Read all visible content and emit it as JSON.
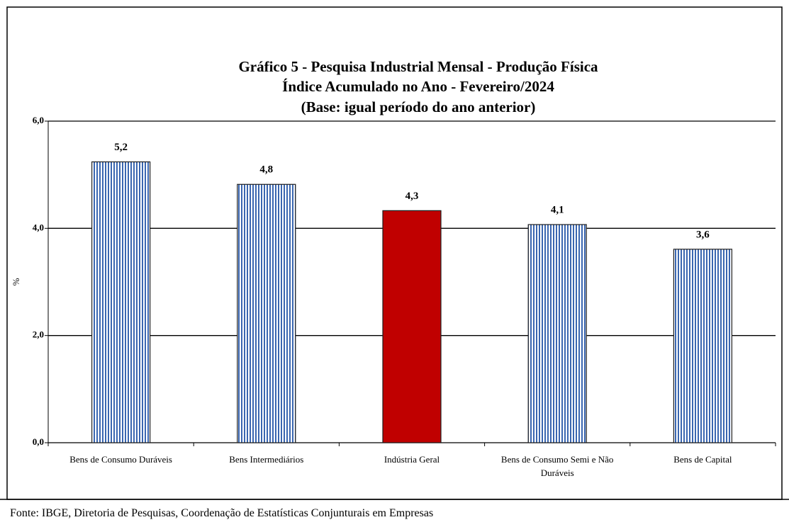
{
  "chart_data": {
    "type": "bar",
    "title": [
      "Gráfico 5 - Pesquisa Industrial Mensal - Produção Física",
      "Índice Acumulado no Ano - Fevereiro/2024",
      "(Base: igual período do ano anterior)"
    ],
    "ylabel": "%",
    "categories": [
      "Bens de Consumo Duráveis",
      "Bens Intermediários",
      "Indústria Geral",
      "Bens de Consumo Semi e Não Duráveis",
      "Bens de Capital"
    ],
    "values": [
      5.24,
      4.82,
      4.33,
      4.07,
      3.61
    ],
    "value_labels": [
      "5,2",
      "4,8",
      "4,3",
      "4,1",
      "3,6"
    ],
    "colors": [
      "#3a66b0",
      "#3a66b0",
      "#c00000",
      "#3a66b0",
      "#3a66b0"
    ],
    "styles": [
      "striped",
      "striped",
      "solid",
      "striped",
      "striped"
    ],
    "ylim": [
      0,
      6
    ],
    "yticks": [
      {
        "value": 0,
        "label": "0,0"
      },
      {
        "value": 2,
        "label": "2,0"
      },
      {
        "value": 4,
        "label": "4,0"
      },
      {
        "value": 6,
        "label": "6,0"
      }
    ],
    "grid": true,
    "source": "Fonte: IBGE, Diretoria de Pesquisas, Coordenação de Estatísticas Conjunturais em Empresas"
  }
}
